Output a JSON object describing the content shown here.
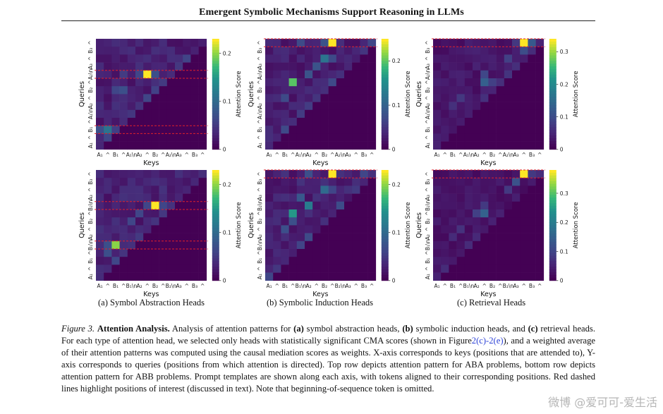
{
  "header": {
    "title": "Emergent Symbolic Mechanisms Support Reasoning in LLMs"
  },
  "axis_labels": {
    "x": "Keys",
    "y": "Queries",
    "colorbar": "Attention Score"
  },
  "sublabels": [
    "(a) Symbol Abstraction Heads",
    "(b) Symbolic Induction Heads",
    "(c) Retrieval Heads"
  ],
  "tick_labels": {
    "aba": [
      "A₁",
      "^",
      "B₁",
      "^",
      "A₁\\n",
      "A₂",
      "^",
      "B₂",
      "^",
      "A₂\\n",
      "A₃",
      "^",
      "B₃",
      "^"
    ],
    "abb": [
      "A₁",
      "^",
      "B₁",
      "^",
      "B₁\\n",
      "A₂",
      "^",
      "B₂",
      "^",
      "B₂\\n",
      "A₃",
      "^",
      "B₃",
      "^"
    ]
  },
  "caption": {
    "figure_label": "Figure 3.",
    "title": "Attention Analysis.",
    "seg1": " Analysis of attention patterns for ",
    "a": "(a)",
    "seg2": " symbol abstraction heads, ",
    "b": "(b)",
    "seg3": " symbolic induction heads, and ",
    "c": "(c)",
    "seg4": " retrieval heads. For each type of attention head, we selected only heads with statistically significant CMA scores (shown in Figure",
    "link": "2(c)-2(e)",
    "seg5": "), and a weighted average of their attention patterns was computed using the causal mediation scores as weights. X-axis corresponds to keys (positions that are attended to), Y-axis corresponds to queries (positions from which attention is directed). Top row depicts attention pattern for ABA problems, bottom row depicts attention pattern for ABB problems. Prompt templates are shown along each axis, with tokens aligned to their corresponding positions. Red dashed lines highlight positions of interest (discussed in text). Note that beginning-of-sequence token is omitted."
  },
  "watermark": "微博 @爱可可-爱生活",
  "colors": {
    "highlight_line": "#e0202a"
  },
  "chart_data": [
    {
      "type": "heatmap",
      "panel": "a-top",
      "problem": "ABA",
      "n": 14,
      "colorbar_ticks": [
        {
          "label": "0",
          "value": 0
        },
        {
          "label": "0.1",
          "value": 0.1
        },
        {
          "label": "0.2",
          "value": 0.2
        }
      ],
      "vmax": 0.23,
      "highlight_rows": [
        4,
        11
      ],
      "hotspots": [
        {
          "r": 4,
          "c": 6,
          "v": 0.23
        },
        {
          "r": 4,
          "c": 7,
          "v": 0.07
        },
        {
          "r": 4,
          "c": 5,
          "v": 0.06
        },
        {
          "r": 4,
          "c": 3,
          "v": 0.05
        },
        {
          "r": 11,
          "c": 1,
          "v": 0.11
        },
        {
          "r": 11,
          "c": 0,
          "v": 0.07
        },
        {
          "r": 12,
          "c": 1,
          "v": 0.06
        },
        {
          "r": 6,
          "c": 3,
          "v": 0.07
        },
        {
          "r": 6,
          "c": 2,
          "v": 0.06
        }
      ]
    },
    {
      "type": "heatmap",
      "panel": "b-top",
      "problem": "ABA",
      "n": 14,
      "colorbar_ticks": [
        {
          "label": "0",
          "value": 0
        },
        {
          "label": "0.1",
          "value": 0.1
        },
        {
          "label": "0.2",
          "value": 0.2
        }
      ],
      "vmax": 0.25,
      "highlight_rows": [
        0
      ],
      "hotspots": [
        {
          "r": 0,
          "c": 8,
          "v": 0.25
        },
        {
          "r": 0,
          "c": 7,
          "v": 0.08
        },
        {
          "r": 0,
          "c": 4,
          "v": 0.07
        },
        {
          "r": 2,
          "c": 7,
          "v": 0.12
        },
        {
          "r": 2,
          "c": 8,
          "v": 0.07
        },
        {
          "r": 5,
          "c": 3,
          "v": 0.2
        },
        {
          "r": 3,
          "c": 6,
          "v": 0.08
        },
        {
          "r": 4,
          "c": 5,
          "v": 0.08
        },
        {
          "r": 7,
          "c": 2,
          "v": 0.07
        }
      ]
    },
    {
      "type": "heatmap",
      "panel": "c-top",
      "problem": "ABA",
      "n": 14,
      "colorbar_ticks": [
        {
          "label": "0",
          "value": 0
        },
        {
          "label": "0.1",
          "value": 0.1
        },
        {
          "label": "0.2",
          "value": 0.2
        },
        {
          "label": "0.3",
          "value": 0.3
        }
      ],
      "vmax": 0.34,
      "highlight_rows": [
        0
      ],
      "hotspots": [
        {
          "r": 0,
          "c": 11,
          "v": 0.34
        },
        {
          "r": 0,
          "c": 12,
          "v": 0.12
        },
        {
          "r": 0,
          "c": 10,
          "v": 0.07
        },
        {
          "r": 1,
          "c": 11,
          "v": 0.1
        },
        {
          "r": 2,
          "c": 9,
          "v": 0.08
        },
        {
          "r": 4,
          "c": 6,
          "v": 0.09
        },
        {
          "r": 5,
          "c": 6,
          "v": 0.13
        },
        {
          "r": 5,
          "c": 7,
          "v": 0.08
        },
        {
          "r": 7,
          "c": 3,
          "v": 0.07
        },
        {
          "r": 8,
          "c": 2,
          "v": 0.06
        }
      ]
    },
    {
      "type": "heatmap",
      "panel": "a-bottom",
      "problem": "ABB",
      "n": 14,
      "colorbar_ticks": [
        {
          "label": "0",
          "value": 0
        },
        {
          "label": "0.1",
          "value": 0.1
        },
        {
          "label": "0.2",
          "value": 0.2
        }
      ],
      "vmax": 0.23,
      "highlight_rows": [
        4,
        9
      ],
      "hotspots": [
        {
          "r": 4,
          "c": 7,
          "v": 0.23
        },
        {
          "r": 4,
          "c": 6,
          "v": 0.06
        },
        {
          "r": 4,
          "c": 8,
          "v": 0.06
        },
        {
          "r": 9,
          "c": 2,
          "v": 0.2
        },
        {
          "r": 9,
          "c": 1,
          "v": 0.07
        },
        {
          "r": 10,
          "c": 1,
          "v": 0.07
        },
        {
          "r": 6,
          "c": 4,
          "v": 0.06
        },
        {
          "r": 5,
          "c": 5,
          "v": 0.06
        }
      ]
    },
    {
      "type": "heatmap",
      "panel": "b-bottom",
      "problem": "ABB",
      "n": 14,
      "colorbar_ticks": [
        {
          "label": "0",
          "value": 0
        },
        {
          "label": "0.1",
          "value": 0.1
        },
        {
          "label": "0.2",
          "value": 0.2
        }
      ],
      "vmax": 0.23,
      "highlight_rows": [
        0
      ],
      "hotspots": [
        {
          "r": 0,
          "c": 8,
          "v": 0.23
        },
        {
          "r": 0,
          "c": 5,
          "v": 0.07
        },
        {
          "r": 0,
          "c": 12,
          "v": 0.06
        },
        {
          "r": 2,
          "c": 7,
          "v": 0.1
        },
        {
          "r": 2,
          "c": 8,
          "v": 0.06
        },
        {
          "r": 3,
          "c": 4,
          "v": 0.08
        },
        {
          "r": 5,
          "c": 3,
          "v": 0.15
        },
        {
          "r": 4,
          "c": 5,
          "v": 0.12
        },
        {
          "r": 7,
          "c": 2,
          "v": 0.07
        },
        {
          "r": 6,
          "c": 3,
          "v": 0.07
        }
      ]
    },
    {
      "type": "heatmap",
      "panel": "c-bottom",
      "problem": "ABB",
      "n": 14,
      "colorbar_ticks": [
        {
          "label": "0",
          "value": 0
        },
        {
          "label": "0.1",
          "value": 0.1
        },
        {
          "label": "0.2",
          "value": 0.2
        },
        {
          "label": "0.3",
          "value": 0.3
        }
      ],
      "vmax": 0.38,
      "highlight_rows": [
        0
      ],
      "hotspots": [
        {
          "r": 0,
          "c": 11,
          "v": 0.38
        },
        {
          "r": 0,
          "c": 12,
          "v": 0.08
        },
        {
          "r": 1,
          "c": 10,
          "v": 0.12
        },
        {
          "r": 2,
          "c": 9,
          "v": 0.08
        },
        {
          "r": 4,
          "c": 6,
          "v": 0.08
        },
        {
          "r": 5,
          "c": 6,
          "v": 0.15
        },
        {
          "r": 5,
          "c": 5,
          "v": 0.09
        },
        {
          "r": 7,
          "c": 3,
          "v": 0.07
        },
        {
          "r": 8,
          "c": 2,
          "v": 0.06
        }
      ]
    }
  ]
}
